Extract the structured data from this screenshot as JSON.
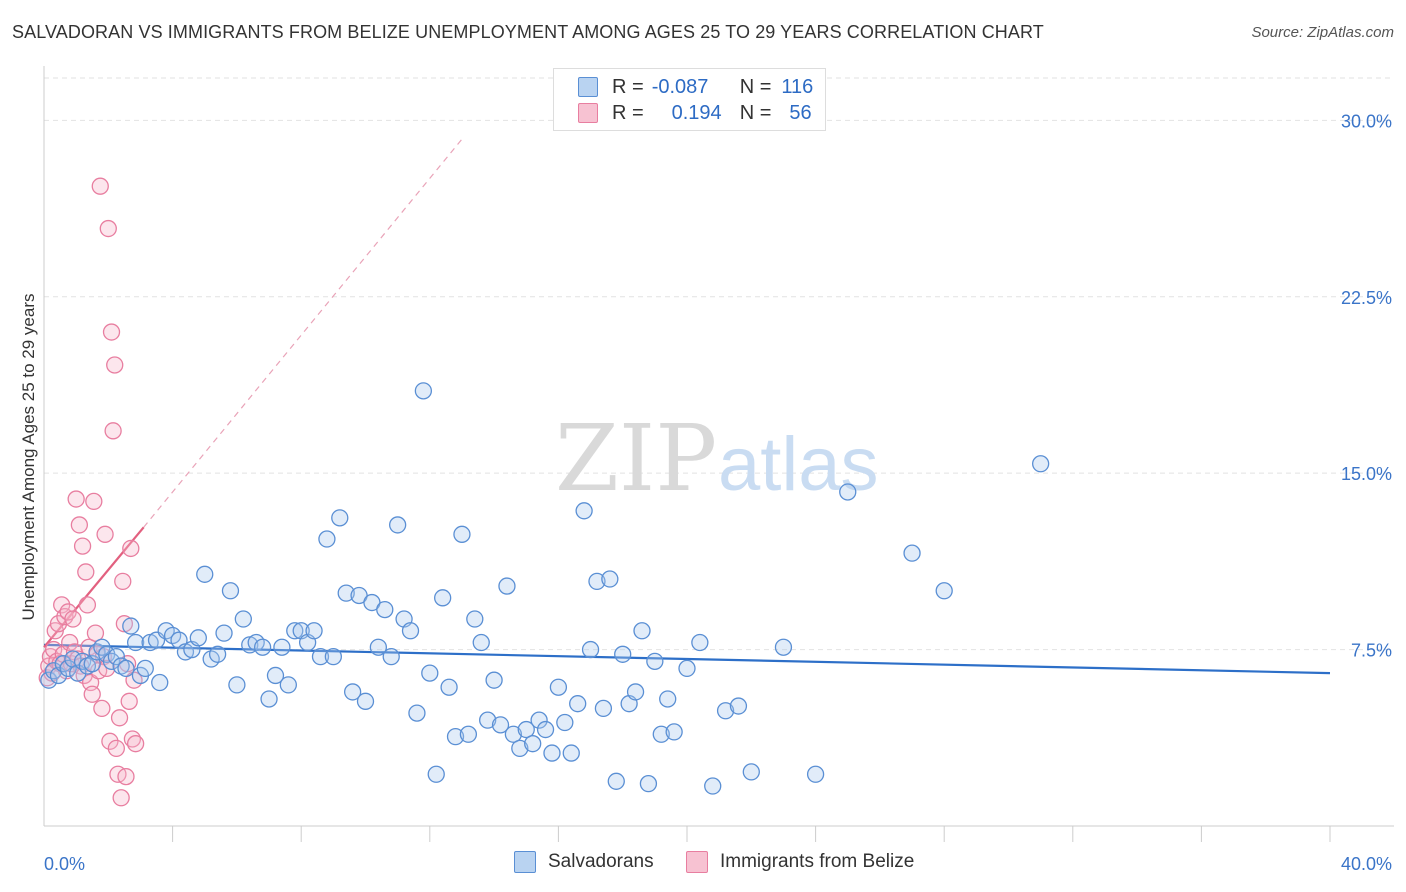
{
  "title": "SALVADORAN VS IMMIGRANTS FROM BELIZE UNEMPLOYMENT AMONG AGES 25 TO 29 YEARS CORRELATION CHART",
  "source": "Source: ZipAtlas.com",
  "watermark": {
    "zip": "ZIP",
    "atlas": "atlas"
  },
  "legend": {
    "rows": [
      {
        "r_label": "R =",
        "r_value": "-0.087",
        "n_label": "N =",
        "n_value": "116"
      },
      {
        "r_label": "R =",
        "r_value": "0.194",
        "n_label": "N =",
        "n_value": "56"
      }
    ]
  },
  "bottom_legend": {
    "salvadorans": "Salvadorans",
    "belize": "Immigrants from Belize"
  },
  "colors": {
    "blue_fill": "#aac8ee",
    "blue_stroke": "#5a8fd4",
    "blue_line": "#2d6fc8",
    "pink_fill": "#f5b8ca",
    "pink_stroke": "#e87ea0",
    "pink_line": "#e2607f",
    "axis_text": "#3a74c8",
    "grid": "#e2e2e2"
  },
  "chart_data": {
    "type": "scatter",
    "title": "SALVADORAN VS IMMIGRANTS FROM BELIZE UNEMPLOYMENT AMONG AGES 25 TO 29 YEARS CORRELATION CHART",
    "xlabel": "",
    "ylabel": "Unemployment Among Ages 25 to 29 years",
    "xlim": [
      0,
      40
    ],
    "ylim": [
      0,
      31.8
    ],
    "x_tick_labels": [
      "0.0%",
      "40.0%"
    ],
    "y_ticks": [
      7.5,
      15.0,
      22.5,
      30.0
    ],
    "y_tick_labels": [
      "7.5%",
      "15.0%",
      "22.5%",
      "30.0%"
    ],
    "series": [
      {
        "name": "Salvadorans",
        "r": -0.087,
        "n": 116,
        "trend": {
          "x": [
            0,
            40
          ],
          "y": [
            7.7,
            6.5
          ]
        },
        "points": [
          [
            0.15,
            6.2
          ],
          [
            0.3,
            6.6
          ],
          [
            0.45,
            6.4
          ],
          [
            0.6,
            6.9
          ],
          [
            0.75,
            6.7
          ],
          [
            0.9,
            7.1
          ],
          [
            1.05,
            6.5
          ],
          [
            1.2,
            7.0
          ],
          [
            1.35,
            6.8
          ],
          [
            1.5,
            6.9
          ],
          [
            1.65,
            7.4
          ],
          [
            1.8,
            7.6
          ],
          [
            1.95,
            7.3
          ],
          [
            2.1,
            7.0
          ],
          [
            2.25,
            7.2
          ],
          [
            2.4,
            6.8
          ],
          [
            2.55,
            6.7
          ],
          [
            2.7,
            8.5
          ],
          [
            2.85,
            7.8
          ],
          [
            3.0,
            6.4
          ],
          [
            3.15,
            6.7
          ],
          [
            3.3,
            7.8
          ],
          [
            3.5,
            7.9
          ],
          [
            3.6,
            6.1
          ],
          [
            3.8,
            8.3
          ],
          [
            4.0,
            8.1
          ],
          [
            4.2,
            7.9
          ],
          [
            4.4,
            7.4
          ],
          [
            4.6,
            7.5
          ],
          [
            4.8,
            8.0
          ],
          [
            5.0,
            10.7
          ],
          [
            5.2,
            7.1
          ],
          [
            5.4,
            7.3
          ],
          [
            5.6,
            8.2
          ],
          [
            5.8,
            10.0
          ],
          [
            6.0,
            6.0
          ],
          [
            6.2,
            8.8
          ],
          [
            6.4,
            7.7
          ],
          [
            6.6,
            7.8
          ],
          [
            6.8,
            7.6
          ],
          [
            7.0,
            5.4
          ],
          [
            7.2,
            6.4
          ],
          [
            7.4,
            7.6
          ],
          [
            7.6,
            6.0
          ],
          [
            7.8,
            8.3
          ],
          [
            8.0,
            8.3
          ],
          [
            8.2,
            7.8
          ],
          [
            8.4,
            8.3
          ],
          [
            8.6,
            7.2
          ],
          [
            8.8,
            12.2
          ],
          [
            9.0,
            7.2
          ],
          [
            9.2,
            13.1
          ],
          [
            9.4,
            9.9
          ],
          [
            9.6,
            5.7
          ],
          [
            9.8,
            9.8
          ],
          [
            10.0,
            5.3
          ],
          [
            10.2,
            9.5
          ],
          [
            10.4,
            7.6
          ],
          [
            10.6,
            9.2
          ],
          [
            10.8,
            7.2
          ],
          [
            11.0,
            12.8
          ],
          [
            11.2,
            8.8
          ],
          [
            11.4,
            8.3
          ],
          [
            11.6,
            4.8
          ],
          [
            11.8,
            18.5
          ],
          [
            12.0,
            6.5
          ],
          [
            12.2,
            2.2
          ],
          [
            12.4,
            9.7
          ],
          [
            12.6,
            5.9
          ],
          [
            12.8,
            3.8
          ],
          [
            13.0,
            12.4
          ],
          [
            13.2,
            3.9
          ],
          [
            13.4,
            8.8
          ],
          [
            13.6,
            7.8
          ],
          [
            13.8,
            4.5
          ],
          [
            14.0,
            6.2
          ],
          [
            14.2,
            4.3
          ],
          [
            14.4,
            10.2
          ],
          [
            14.6,
            3.9
          ],
          [
            14.8,
            3.3
          ],
          [
            15.0,
            4.1
          ],
          [
            15.2,
            3.5
          ],
          [
            15.4,
            4.5
          ],
          [
            15.6,
            4.1
          ],
          [
            15.8,
            3.1
          ],
          [
            16.0,
            5.9
          ],
          [
            16.2,
            4.4
          ],
          [
            16.4,
            3.1
          ],
          [
            16.6,
            5.2
          ],
          [
            16.8,
            13.4
          ],
          [
            17.0,
            7.5
          ],
          [
            17.2,
            10.4
          ],
          [
            17.4,
            5.0
          ],
          [
            17.6,
            10.5
          ],
          [
            17.8,
            1.9
          ],
          [
            18.0,
            7.3
          ],
          [
            18.2,
            5.2
          ],
          [
            18.4,
            5.7
          ],
          [
            18.6,
            8.3
          ],
          [
            18.8,
            1.8
          ],
          [
            19.0,
            7.0
          ],
          [
            19.2,
            3.9
          ],
          [
            19.4,
            5.4
          ],
          [
            19.6,
            4.0
          ],
          [
            20.0,
            6.7
          ],
          [
            20.4,
            7.8
          ],
          [
            20.8,
            1.7
          ],
          [
            21.2,
            4.9
          ],
          [
            21.6,
            5.1
          ],
          [
            22.0,
            2.3
          ],
          [
            23.0,
            7.6
          ],
          [
            24.0,
            2.2
          ],
          [
            25.0,
            14.2
          ],
          [
            27.0,
            11.6
          ],
          [
            28.0,
            10.0
          ],
          [
            31.0,
            15.4
          ]
        ]
      },
      {
        "name": "Immigrants from Belize",
        "r": 0.194,
        "n": 56,
        "trend": {
          "x": [
            0,
            3.1
          ],
          "y": [
            7.6,
            12.7
          ]
        },
        "trend_extension": {
          "x": [
            3.1,
            13.0
          ],
          "y": [
            12.7,
            29.2
          ]
        },
        "points": [
          [
            0.1,
            6.3
          ],
          [
            0.15,
            6.8
          ],
          [
            0.2,
            7.2
          ],
          [
            0.25,
            6.5
          ],
          [
            0.3,
            7.5
          ],
          [
            0.35,
            8.3
          ],
          [
            0.4,
            7.0
          ],
          [
            0.45,
            8.6
          ],
          [
            0.5,
            6.9
          ],
          [
            0.55,
            9.4
          ],
          [
            0.6,
            7.3
          ],
          [
            0.65,
            8.9
          ],
          [
            0.7,
            6.6
          ],
          [
            0.75,
            9.1
          ],
          [
            0.8,
            7.8
          ],
          [
            0.85,
            6.9
          ],
          [
            0.9,
            8.8
          ],
          [
            0.95,
            7.4
          ],
          [
            1.0,
            13.9
          ],
          [
            1.05,
            7.1
          ],
          [
            1.1,
            12.8
          ],
          [
            1.15,
            6.8
          ],
          [
            1.2,
            11.9
          ],
          [
            1.25,
            6.4
          ],
          [
            1.3,
            10.8
          ],
          [
            1.35,
            9.4
          ],
          [
            1.4,
            7.6
          ],
          [
            1.45,
            6.1
          ],
          [
            1.5,
            5.6
          ],
          [
            1.55,
            13.8
          ],
          [
            1.6,
            8.2
          ],
          [
            1.65,
            7.3
          ],
          [
            1.7,
            6.6
          ],
          [
            1.75,
            27.2
          ],
          [
            1.8,
            5.0
          ],
          [
            1.85,
            7.2
          ],
          [
            1.9,
            12.4
          ],
          [
            1.95,
            6.7
          ],
          [
            2.0,
            25.4
          ],
          [
            2.05,
            3.6
          ],
          [
            2.1,
            21.0
          ],
          [
            2.15,
            16.8
          ],
          [
            2.2,
            19.6
          ],
          [
            2.25,
            3.3
          ],
          [
            2.3,
            2.2
          ],
          [
            2.35,
            4.6
          ],
          [
            2.4,
            1.2
          ],
          [
            2.45,
            10.4
          ],
          [
            2.5,
            8.6
          ],
          [
            2.55,
            2.1
          ],
          [
            2.6,
            6.9
          ],
          [
            2.65,
            5.3
          ],
          [
            2.7,
            11.8
          ],
          [
            2.75,
            3.7
          ],
          [
            2.8,
            6.2
          ],
          [
            2.85,
            3.5
          ]
        ]
      }
    ]
  }
}
